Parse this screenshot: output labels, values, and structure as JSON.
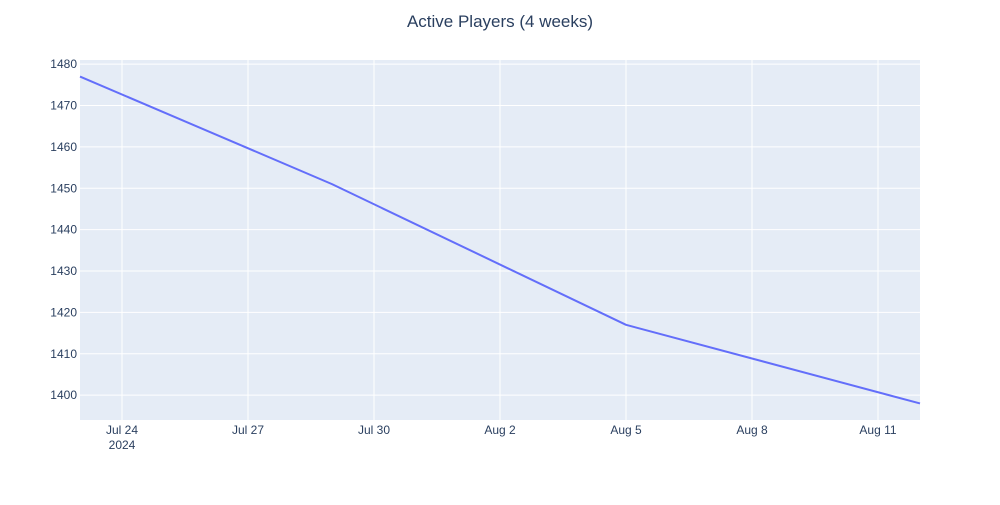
{
  "chart_data": {
    "type": "line",
    "title": "Active Players (4 weeks)",
    "xlabel": "",
    "ylabel": "",
    "x_tick_labels": [
      {
        "date": "2024-07-24",
        "label": "Jul 24",
        "sublabel": "2024"
      },
      {
        "date": "2024-07-27",
        "label": "Jul 27"
      },
      {
        "date": "2024-07-30",
        "label": "Jul 30"
      },
      {
        "date": "2024-08-02",
        "label": "Aug 2"
      },
      {
        "date": "2024-08-05",
        "label": "Aug 5"
      },
      {
        "date": "2024-08-08",
        "label": "Aug 8"
      },
      {
        "date": "2024-08-11",
        "label": "Aug 11"
      }
    ],
    "y_ticks": [
      1400,
      1410,
      1420,
      1430,
      1440,
      1450,
      1460,
      1470,
      1480
    ],
    "xlim": [
      "2024-07-23",
      "2024-08-12"
    ],
    "ylim": [
      1394,
      1481
    ],
    "grid": true,
    "series": [
      {
        "x": [
          "2024-07-23",
          "2024-07-29",
          "2024-08-05",
          "2024-08-12"
        ],
        "values": [
          1477,
          1451,
          1417,
          1398
        ]
      }
    ],
    "colors": {
      "line": "#636efa",
      "plot_bg": "#e5ecf6",
      "grid": "#ffffff",
      "text": "#2a3f5f"
    }
  }
}
